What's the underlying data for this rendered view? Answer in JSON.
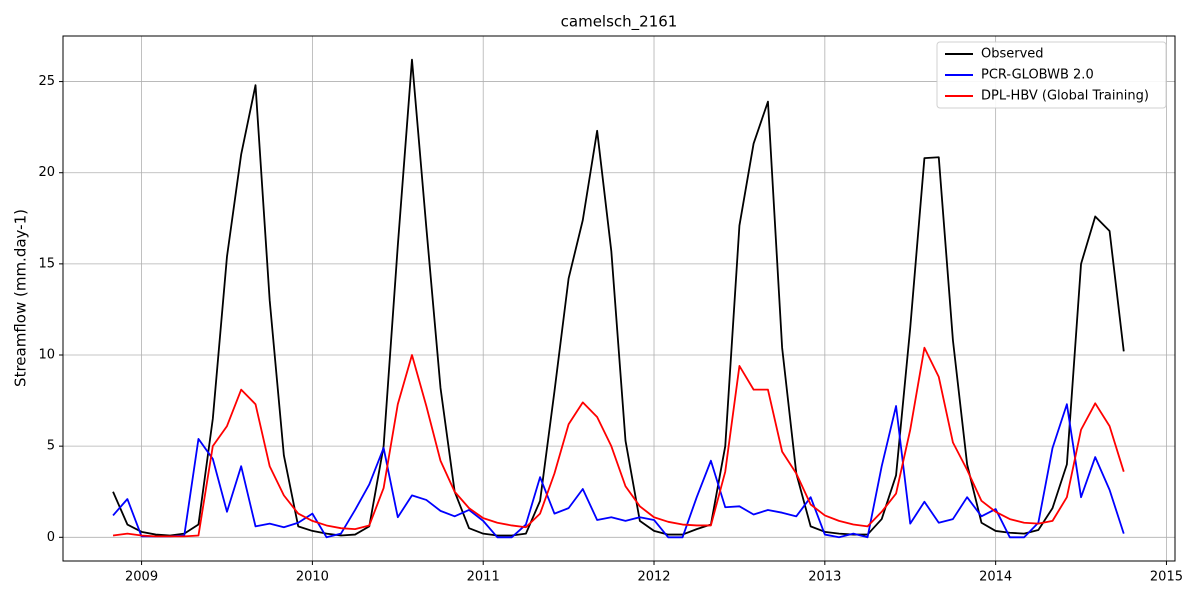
{
  "chart_data": {
    "type": "line",
    "title": "camelsch_2161",
    "ylabel": "Streamflow (mm.day-1)",
    "x": [
      2008.833,
      2008.917,
      2009.0,
      2009.083,
      2009.167,
      2009.25,
      2009.333,
      2009.417,
      2009.5,
      2009.583,
      2009.667,
      2009.75,
      2009.833,
      2009.917,
      2010.0,
      2010.083,
      2010.167,
      2010.25,
      2010.333,
      2010.417,
      2010.5,
      2010.583,
      2010.667,
      2010.75,
      2010.833,
      2010.917,
      2011.0,
      2011.083,
      2011.167,
      2011.25,
      2011.333,
      2011.417,
      2011.5,
      2011.583,
      2011.667,
      2011.75,
      2011.833,
      2011.917,
      2012.0,
      2012.083,
      2012.167,
      2012.25,
      2012.333,
      2012.417,
      2012.5,
      2012.583,
      2012.667,
      2012.75,
      2012.833,
      2012.917,
      2013.0,
      2013.083,
      2013.167,
      2013.25,
      2013.333,
      2013.417,
      2013.5,
      2013.583,
      2013.667,
      2013.75,
      2013.833,
      2013.917,
      2014.0,
      2014.083,
      2014.167,
      2014.25,
      2014.333,
      2014.417,
      2014.5,
      2014.583,
      2014.667,
      2014.75
    ],
    "series": [
      {
        "name": "Observed",
        "color": "#000000",
        "values": [
          2.5,
          0.7,
          0.3,
          0.15,
          0.1,
          0.2,
          0.7,
          6.5,
          15.4,
          21,
          24.8,
          13,
          4.5,
          0.6,
          0.35,
          0.2,
          0.1,
          0.15,
          0.6,
          5,
          16,
          26.2,
          17,
          8.2,
          2.5,
          0.5,
          0.2,
          0.1,
          0.1,
          0.2,
          2,
          8,
          14.2,
          17.4,
          22.3,
          15.7,
          5.3,
          0.9,
          0.35,
          0.15,
          0.15,
          0.45,
          0.7,
          5,
          17.1,
          21.6,
          23.9,
          10.4,
          3.5,
          0.6,
          0.3,
          0.2,
          0.15,
          0.15,
          1.0,
          3.4,
          11.5,
          20.8,
          20.85,
          10.8,
          4,
          0.8,
          0.35,
          0.25,
          0.2,
          0.4,
          1.6,
          4,
          15,
          17.6,
          16.8,
          10.2
        ]
      },
      {
        "name": "PCR-GLOBWB 2.0",
        "color": "#0000ff",
        "values": [
          1.2,
          2.1,
          0.05,
          0.05,
          0.05,
          0.1,
          5.4,
          4.3,
          1.4,
          3.9,
          0.6,
          0.75,
          0.55,
          0.8,
          1.3,
          0.0,
          0.2,
          1.5,
          2.9,
          4.9,
          1.1,
          2.3,
          2.05,
          1.45,
          1.15,
          1.5,
          0.9,
          0.0,
          0.0,
          0.7,
          3.3,
          1.3,
          1.6,
          2.65,
          0.95,
          1.1,
          0.9,
          1.1,
          0.95,
          0.0,
          0.0,
          2.2,
          4.2,
          1.65,
          1.7,
          1.25,
          1.5,
          1.35,
          1.15,
          2.2,
          0.15,
          0.0,
          0.2,
          0.0,
          3.9,
          7.2,
          0.75,
          1.95,
          0.8,
          1.0,
          2.2,
          1.15,
          1.55,
          0.0,
          0.0,
          0.8,
          4.9,
          7.3,
          2.2,
          4.4,
          2.6,
          0.2
        ]
      },
      {
        "name": "DPL-HBV (Global Training)",
        "color": "#ff0000",
        "values": [
          0.1,
          0.2,
          0.1,
          0.05,
          0.05,
          0.05,
          0.1,
          5.0,
          6.1,
          8.1,
          7.3,
          3.9,
          2.3,
          1.3,
          0.9,
          0.65,
          0.5,
          0.45,
          0.65,
          2.7,
          7.3,
          10.0,
          7.2,
          4.2,
          2.5,
          1.6,
          1.05,
          0.8,
          0.65,
          0.55,
          1.3,
          3.5,
          6.2,
          7.4,
          6.6,
          5.0,
          2.8,
          1.7,
          1.1,
          0.85,
          0.7,
          0.65,
          0.65,
          3.6,
          9.4,
          8.1,
          8.1,
          4.7,
          3.5,
          1.8,
          1.2,
          0.9,
          0.7,
          0.6,
          1.4,
          2.4,
          5.9,
          10.4,
          8.8,
          5.2,
          3.7,
          2.0,
          1.4,
          1.0,
          0.8,
          0.75,
          0.9,
          2.2,
          5.9,
          7.35,
          6.1,
          3.6
        ]
      }
    ],
    "xlim": [
      2008.54,
      2015.05
    ],
    "ylim": [
      -1.3,
      27.5
    ],
    "xticks": [
      2009,
      2010,
      2011,
      2012,
      2013,
      2014,
      2015
    ],
    "yticks": [
      0,
      5,
      10,
      15,
      20,
      25
    ],
    "grid": true,
    "legend": "upper right"
  }
}
